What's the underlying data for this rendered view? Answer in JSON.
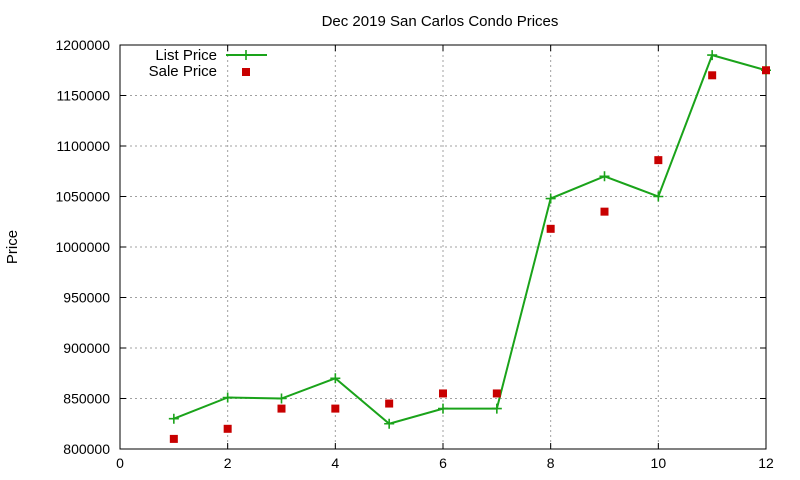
{
  "chart_data": {
    "type": "line",
    "title": "Dec 2019 San Carlos Condo Prices",
    "xlabel": "",
    "ylabel": "Price",
    "xlim": [
      0,
      12
    ],
    "ylim": [
      800000,
      1200000
    ],
    "x_ticks": [
      0,
      2,
      4,
      6,
      8,
      10,
      12
    ],
    "y_ticks": [
      800000,
      850000,
      900000,
      950000,
      1000000,
      1050000,
      1100000,
      1150000,
      1200000
    ],
    "grid": true,
    "legend_position": "top-left",
    "series": [
      {
        "name": "List Price",
        "style": "line-points",
        "color": "#1aa31a",
        "x": [
          1,
          2,
          3,
          4,
          5,
          6,
          7,
          8,
          9,
          10,
          11,
          12
        ],
        "y": [
          830000,
          851000,
          850000,
          870000,
          825000,
          840000,
          840000,
          1048000,
          1070000,
          1050000,
          1190000,
          1175000
        ]
      },
      {
        "name": "Sale Price",
        "style": "points",
        "color": "#c80000",
        "x": [
          1,
          2,
          3,
          4,
          5,
          6,
          7,
          8,
          9,
          10,
          11,
          12
        ],
        "y": [
          810000,
          820000,
          840000,
          840000,
          845000,
          855000,
          855000,
          1018000,
          1035000,
          1086000,
          1170000,
          1175000
        ]
      }
    ]
  }
}
